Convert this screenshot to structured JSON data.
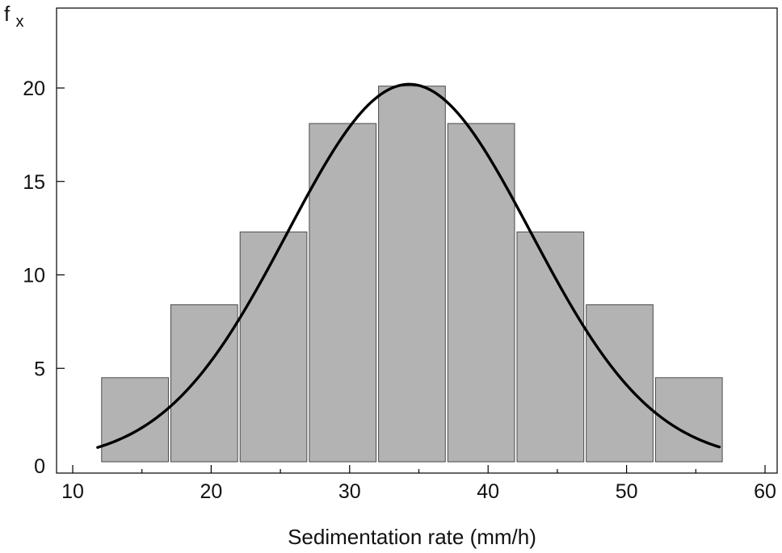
{
  "chart_data": {
    "type": "bar",
    "title": "",
    "xlabel": "Sedimentation rate (mm/h)",
    "ylabel_main": "f",
    "ylabel_sub": "x",
    "xlim": [
      10,
      60
    ],
    "ylim": [
      0,
      24
    ],
    "x_ticks": [
      10,
      20,
      30,
      40,
      50,
      60
    ],
    "y_ticks": [
      0,
      5,
      10,
      15,
      20
    ],
    "grid": false,
    "bins": [
      {
        "from": 12,
        "to": 17,
        "value": 4.5
      },
      {
        "from": 17,
        "to": 22,
        "value": 8.4
      },
      {
        "from": 22,
        "to": 27,
        "value": 12.3
      },
      {
        "from": 27,
        "to": 32,
        "value": 18.1
      },
      {
        "from": 32,
        "to": 37,
        "value": 20.1
      },
      {
        "from": 37,
        "to": 42,
        "value": 18.1
      },
      {
        "from": 42,
        "to": 47,
        "value": 12.3
      },
      {
        "from": 47,
        "to": 52,
        "value": 8.4
      },
      {
        "from": 52,
        "to": 57,
        "value": 4.5
      }
    ],
    "fitted_curve": {
      "type": "normal",
      "mean": 34.3,
      "sd": 8.8,
      "peak": 20.2,
      "x_from": 11.8,
      "x_to": 56.7
    },
    "colors": {
      "bar_fill": "#b3b3b3",
      "bar_edge": "#4a4a4a",
      "curve": "#000000"
    }
  }
}
